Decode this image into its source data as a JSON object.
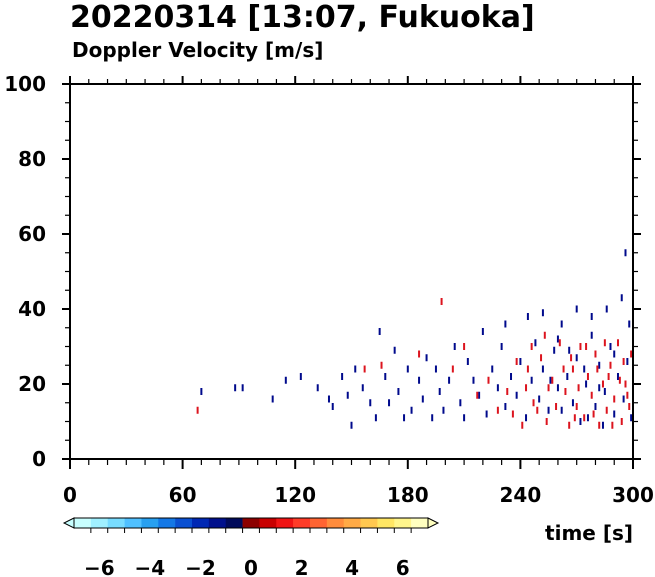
{
  "chart_data": {
    "type": "scatter",
    "title": "20220314 [13:07, Fukuoka]",
    "subtitle": "Doppler Velocity [m/s]",
    "xlabel": "time [s]",
    "ylabel": "",
    "xlim": [
      0,
      300
    ],
    "ylim": [
      0,
      100
    ],
    "x_ticks": [
      0,
      60,
      120,
      180,
      240,
      300
    ],
    "y_ticks": [
      0,
      20,
      40,
      60,
      80,
      100
    ],
    "grid": false,
    "colorbar": {
      "orientation": "horizontal",
      "placement": "bottom-left",
      "range": [
        -7,
        7
      ],
      "ticks": [
        -6,
        -4,
        -2,
        0,
        2,
        4,
        6
      ],
      "tick_labels": [
        "−6",
        "−4",
        "−2",
        "0",
        "2",
        "4",
        "6"
      ],
      "colors": [
        "#c8ffff",
        "#a0f0ff",
        "#78dcff",
        "#50c0ff",
        "#28a0f0",
        "#1478e6",
        "#0a50d2",
        "#0028b4",
        "#00108c",
        "#000a5a",
        "#8c0000",
        "#c80000",
        "#f01414",
        "#ff3c28",
        "#ff6432",
        "#ff8c3c",
        "#ffaa46",
        "#ffc850",
        "#ffe664",
        "#fff58c",
        "#ffffc0"
      ]
    },
    "colors": {
      "negative": "#000a8c",
      "positive": "#dc141e",
      "frame": "#000000"
    },
    "series": [
      {
        "sign": "negative",
        "points": [
          [
            70,
            18
          ],
          [
            88,
            19
          ],
          [
            92,
            19
          ],
          [
            108,
            16
          ],
          [
            115,
            21
          ],
          [
            123,
            22
          ],
          [
            132,
            19
          ],
          [
            138,
            16
          ],
          [
            140,
            14
          ],
          [
            145,
            22
          ],
          [
            148,
            17
          ],
          [
            150,
            9
          ],
          [
            152,
            24
          ],
          [
            156,
            19
          ],
          [
            160,
            15
          ],
          [
            163,
            11
          ],
          [
            165,
            34
          ],
          [
            168,
            22
          ],
          [
            170,
            15
          ],
          [
            173,
            29
          ],
          [
            175,
            18
          ],
          [
            178,
            11
          ],
          [
            180,
            24
          ],
          [
            182,
            13
          ],
          [
            186,
            21
          ],
          [
            188,
            16
          ],
          [
            190,
            27
          ],
          [
            193,
            11
          ],
          [
            195,
            24
          ],
          [
            197,
            18
          ],
          [
            199,
            13
          ],
          [
            202,
            21
          ],
          [
            205,
            30
          ],
          [
            208,
            15
          ],
          [
            210,
            11
          ],
          [
            212,
            26
          ],
          [
            215,
            21
          ],
          [
            218,
            17
          ],
          [
            220,
            34
          ],
          [
            222,
            12
          ],
          [
            225,
            24
          ],
          [
            228,
            19
          ],
          [
            230,
            30
          ],
          [
            232,
            14
          ],
          [
            235,
            22
          ],
          [
            238,
            17
          ],
          [
            240,
            26
          ],
          [
            243,
            11
          ],
          [
            246,
            21
          ],
          [
            248,
            31
          ],
          [
            250,
            16
          ],
          [
            252,
            24
          ],
          [
            255,
            13
          ],
          [
            258,
            29
          ],
          [
            260,
            19
          ],
          [
            262,
            36
          ],
          [
            265,
            22
          ],
          [
            268,
            15
          ],
          [
            270,
            27
          ],
          [
            272,
            10
          ],
          [
            275,
            20
          ],
          [
            278,
            33
          ],
          [
            280,
            14
          ],
          [
            282,
            25
          ],
          [
            285,
            18
          ],
          [
            288,
            30
          ],
          [
            290,
            12
          ],
          [
            292,
            22
          ],
          [
            295,
            16
          ],
          [
            297,
            26
          ],
          [
            299,
            11
          ],
          [
            270,
            40
          ],
          [
            278,
            38
          ],
          [
            286,
            40
          ],
          [
            294,
            43
          ],
          [
            296,
            55
          ],
          [
            252,
            39
          ],
          [
            244,
            38
          ],
          [
            232,
            36
          ],
          [
            260,
            32
          ],
          [
            266,
            29
          ],
          [
            274,
            24
          ],
          [
            282,
            19
          ],
          [
            290,
            28
          ],
          [
            298,
            36
          ],
          [
            256,
            21
          ],
          [
            262,
            13
          ],
          [
            284,
            9
          ],
          [
            276,
            11
          ]
        ]
      },
      {
        "sign": "positive",
        "points": [
          [
            68,
            13
          ],
          [
            157,
            24
          ],
          [
            166,
            25
          ],
          [
            186,
            28
          ],
          [
            198,
            42
          ],
          [
            204,
            24
          ],
          [
            210,
            30
          ],
          [
            217,
            17
          ],
          [
            223,
            21
          ],
          [
            228,
            13
          ],
          [
            233,
            18
          ],
          [
            238,
            26
          ],
          [
            241,
            9
          ],
          [
            244,
            24
          ],
          [
            247,
            15
          ],
          [
            251,
            27
          ],
          [
            254,
            10
          ],
          [
            257,
            21
          ],
          [
            259,
            14
          ],
          [
            261,
            31
          ],
          [
            264,
            18
          ],
          [
            266,
            9
          ],
          [
            268,
            24
          ],
          [
            270,
            14
          ],
          [
            272,
            30
          ],
          [
            274,
            11
          ],
          [
            276,
            22
          ],
          [
            278,
            17
          ],
          [
            280,
            28
          ],
          [
            282,
            9
          ],
          [
            284,
            20
          ],
          [
            286,
            13
          ],
          [
            288,
            25
          ],
          [
            290,
            16
          ],
          [
            292,
            31
          ],
          [
            294,
            10
          ],
          [
            296,
            20
          ],
          [
            298,
            14
          ],
          [
            299,
            28
          ],
          [
            263,
            24
          ],
          [
            271,
            19
          ],
          [
            279,
            12
          ],
          [
            287,
            22
          ],
          [
            295,
            26
          ],
          [
            255,
            19
          ],
          [
            249,
            13
          ],
          [
            243,
            19
          ],
          [
            236,
            12
          ],
          [
            269,
            11
          ],
          [
            281,
            24
          ],
          [
            289,
            9
          ],
          [
            297,
            17
          ],
          [
            246,
            30
          ],
          [
            253,
            33
          ],
          [
            285,
            31
          ],
          [
            293,
            21
          ],
          [
            267,
            27
          ],
          [
            275,
            30
          ]
        ]
      }
    ]
  }
}
